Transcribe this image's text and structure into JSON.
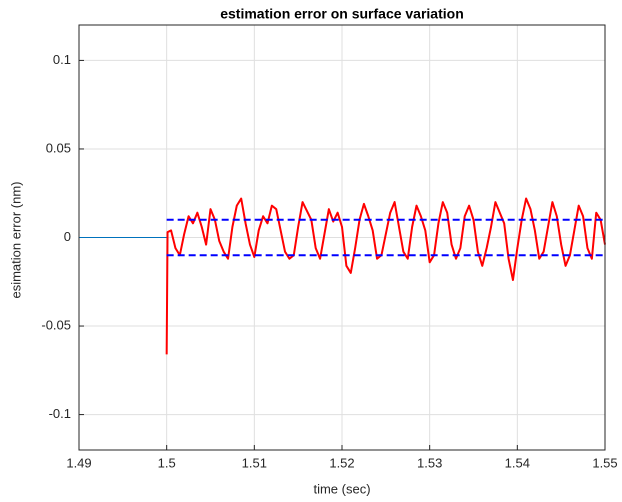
{
  "chart_data": {
    "type": "line",
    "title": "estimation error on surface variation",
    "xlabel": "time (sec)",
    "ylabel": "esimation error (nm)",
    "xlim": [
      1.49,
      1.55
    ],
    "ylim": [
      -0.12,
      0.12
    ],
    "xticks": [
      1.49,
      1.5,
      1.51,
      1.52,
      1.53,
      1.54,
      1.55
    ],
    "yticks": [
      -0.1,
      -0.05,
      0,
      0.05,
      0.1
    ],
    "grid": true,
    "series": [
      {
        "color": "#0072bd",
        "x": [
          1.49,
          1.5
        ],
        "values": [
          0,
          0
        ]
      },
      {
        "color": "#ff0000",
        "x": [
          1.5,
          1.5001,
          1.5005,
          1.501,
          1.5015,
          1.502,
          1.5025,
          1.503,
          1.5035,
          1.504,
          1.5045,
          1.505,
          1.5055,
          1.506,
          1.5065,
          1.507,
          1.5075,
          1.508,
          1.5085,
          1.509,
          1.5095,
          1.51,
          1.5105,
          1.511,
          1.5115,
          1.512,
          1.5125,
          1.513,
          1.5135,
          1.514,
          1.5145,
          1.515,
          1.5155,
          1.516,
          1.5165,
          1.517,
          1.5175,
          1.518,
          1.5185,
          1.519,
          1.5195,
          1.52,
          1.5205,
          1.521,
          1.5215,
          1.522,
          1.5225,
          1.523,
          1.5235,
          1.524,
          1.5245,
          1.525,
          1.5255,
          1.526,
          1.5265,
          1.527,
          1.5275,
          1.528,
          1.5285,
          1.529,
          1.5295,
          1.53,
          1.5305,
          1.531,
          1.5315,
          1.532,
          1.5325,
          1.533,
          1.5335,
          1.534,
          1.5345,
          1.535,
          1.5355,
          1.536,
          1.5365,
          1.537,
          1.5375,
          1.538,
          1.5385,
          1.539,
          1.5395,
          1.54,
          1.5405,
          1.541,
          1.5415,
          1.542,
          1.5425,
          1.543,
          1.5435,
          1.544,
          1.5445,
          1.545,
          1.5455,
          1.546,
          1.5465,
          1.547,
          1.5475,
          1.548,
          1.5485,
          1.549,
          1.5495,
          1.55
        ],
        "values": [
          -0.066,
          0.003,
          0.004,
          -0.006,
          -0.01,
          0.002,
          0.012,
          0.008,
          0.014,
          0.006,
          -0.004,
          0.016,
          0.01,
          -0.002,
          -0.008,
          -0.012,
          0.006,
          0.018,
          0.022,
          0.008,
          -0.004,
          -0.011,
          0.004,
          0.012,
          0.008,
          0.018,
          0.016,
          0.004,
          -0.008,
          -0.012,
          -0.01,
          0.006,
          0.02,
          0.015,
          0.01,
          -0.006,
          -0.012,
          0.002,
          0.016,
          0.009,
          0.014,
          0.006,
          -0.016,
          -0.02,
          -0.006,
          0.01,
          0.019,
          0.012,
          0.004,
          -0.012,
          -0.01,
          0.002,
          0.014,
          0.02,
          0.006,
          -0.008,
          -0.012,
          0.006,
          0.018,
          0.012,
          0.004,
          -0.014,
          -0.01,
          0.008,
          0.02,
          0.014,
          -0.004,
          -0.012,
          -0.006,
          0.012,
          0.018,
          0.01,
          -0.008,
          -0.016,
          -0.006,
          0.006,
          0.02,
          0.014,
          0.008,
          -0.012,
          -0.024,
          -0.006,
          0.01,
          0.022,
          0.016,
          0.004,
          -0.012,
          -0.008,
          0.006,
          0.02,
          0.012,
          -0.004,
          -0.016,
          -0.01,
          0.004,
          0.018,
          0.012,
          -0.006,
          -0.012,
          0.014,
          0.01,
          -0.004
        ]
      },
      {
        "color": "#0000ff",
        "dashed": true,
        "x": [
          1.5,
          1.55
        ],
        "values": [
          0.01,
          0.01
        ]
      },
      {
        "color": "#0000ff",
        "dashed": true,
        "x": [
          1.5,
          1.55
        ],
        "values": [
          -0.01,
          -0.01
        ]
      }
    ]
  }
}
